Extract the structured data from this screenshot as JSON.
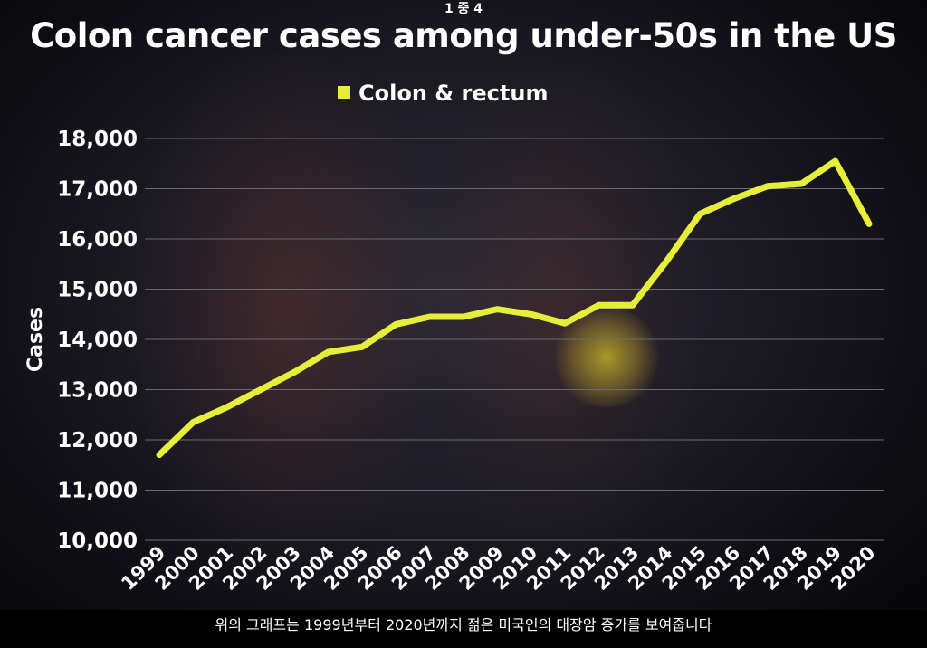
{
  "topbar": {
    "page_indicator": "1 중 4"
  },
  "caption": {
    "text": "위의 그래프는 1999년부터 2020년까지 젊은 미국인의 대장암 증가를 보여줍니다"
  },
  "colors": {
    "line": "#e6ee3a",
    "grid": "#6a6a72",
    "text": "#ffffff"
  },
  "chart_data": {
    "type": "line",
    "title": "Colon cancer cases among under-50s in the US",
    "xlabel": "",
    "ylabel": "Cases",
    "legend_position": "top-center",
    "grid": true,
    "ylim": [
      10000,
      18000
    ],
    "y_ticks": [
      "10,000",
      "11,000",
      "12,000",
      "13,000",
      "14,000",
      "15,000",
      "16,000",
      "17,000",
      "18,000"
    ],
    "x": [
      "1999",
      "2000",
      "2001",
      "2002",
      "2003",
      "2004",
      "2005",
      "2006",
      "2007",
      "2008",
      "2009",
      "2010",
      "2011",
      "2012",
      "2013",
      "2014",
      "2015",
      "2016",
      "2017",
      "2018",
      "2019",
      "2020"
    ],
    "series": [
      {
        "name": "Colon & rectum",
        "values": [
          11700,
          12350,
          12650,
          13000,
          13350,
          13750,
          13850,
          14300,
          14450,
          14450,
          14600,
          14500,
          14320,
          14680,
          14680,
          15550,
          16500,
          16800,
          17050,
          17100,
          17550,
          16300
        ]
      }
    ]
  }
}
